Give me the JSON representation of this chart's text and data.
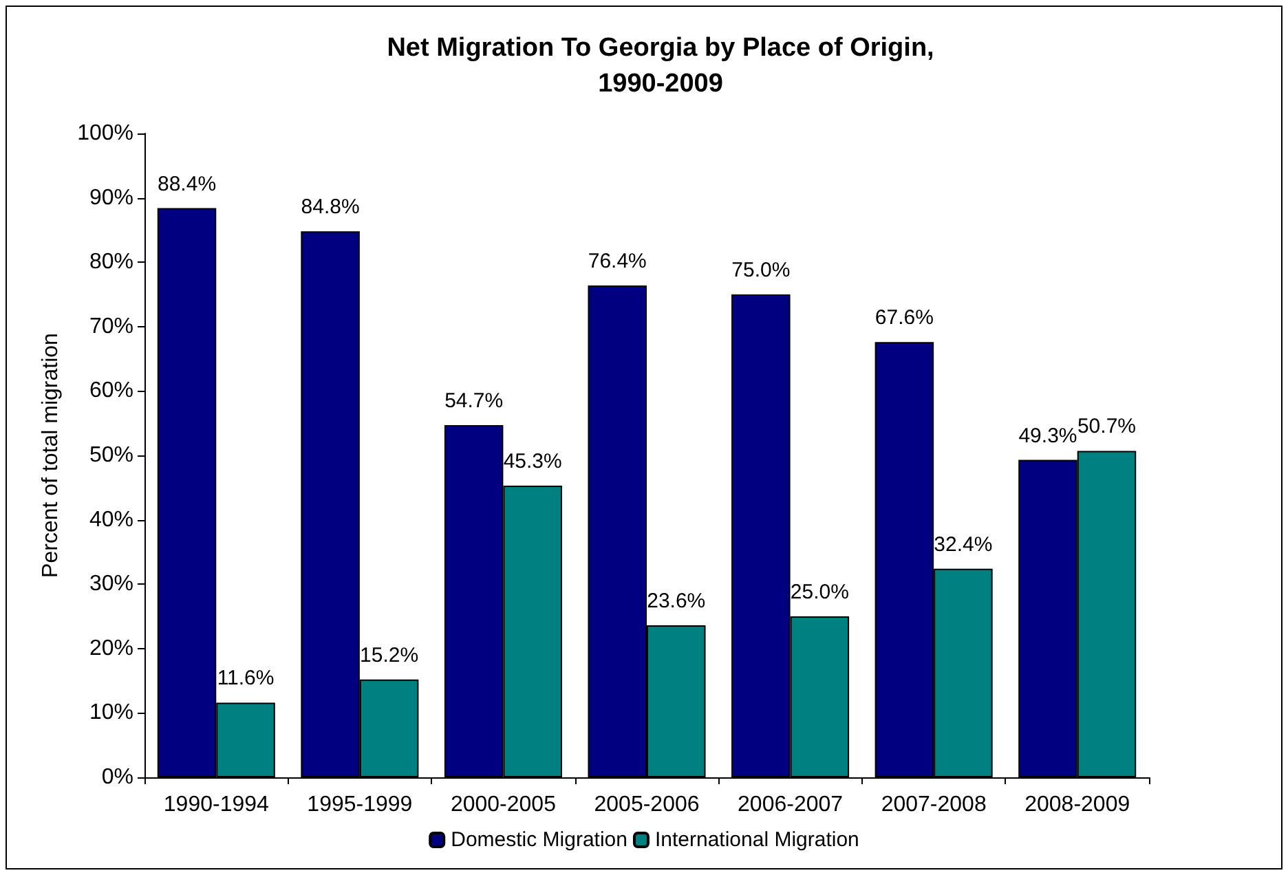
{
  "chart_data": {
    "type": "bar",
    "title": "Net Migration To Georgia by Place of Origin,\n1990-2009",
    "ylabel": "Percent of total migration",
    "categories": [
      "1990-1994",
      "1995-1999",
      "2000-2005",
      "2005-2006",
      "2006-2007",
      "2007-2008",
      "2008-2009"
    ],
    "series": [
      {
        "name": "Domestic Migration",
        "color": "#000080",
        "values": [
          88.4,
          84.8,
          54.7,
          76.4,
          75.0,
          67.6,
          49.3
        ],
        "value_labels": [
          "88.4%",
          "84.8%",
          "54.7%",
          "76.4%",
          "75.0%",
          "67.6%",
          "49.3%"
        ]
      },
      {
        "name": "International Migration",
        "color": "#008080",
        "values": [
          11.6,
          15.2,
          45.3,
          23.6,
          25.0,
          32.4,
          50.7
        ],
        "value_labels": [
          "11.6%",
          "15.2%",
          "45.3%",
          "23.6%",
          "25.0%",
          "32.4%",
          "50.7%"
        ]
      }
    ],
    "ylim": [
      0,
      100
    ],
    "yticks": [
      {
        "value": 0,
        "label": "0%"
      },
      {
        "value": 10,
        "label": "10%"
      },
      {
        "value": 20,
        "label": "20%"
      },
      {
        "value": 30,
        "label": "30%"
      },
      {
        "value": 40,
        "label": "40%"
      },
      {
        "value": 50,
        "label": "50%"
      },
      {
        "value": 60,
        "label": "60%"
      },
      {
        "value": 70,
        "label": "70%"
      },
      {
        "value": 80,
        "label": "80%"
      },
      {
        "value": 90,
        "label": "90%"
      },
      {
        "value": 100,
        "label": "100%"
      }
    ],
    "grid": false,
    "legend": "bottom"
  }
}
